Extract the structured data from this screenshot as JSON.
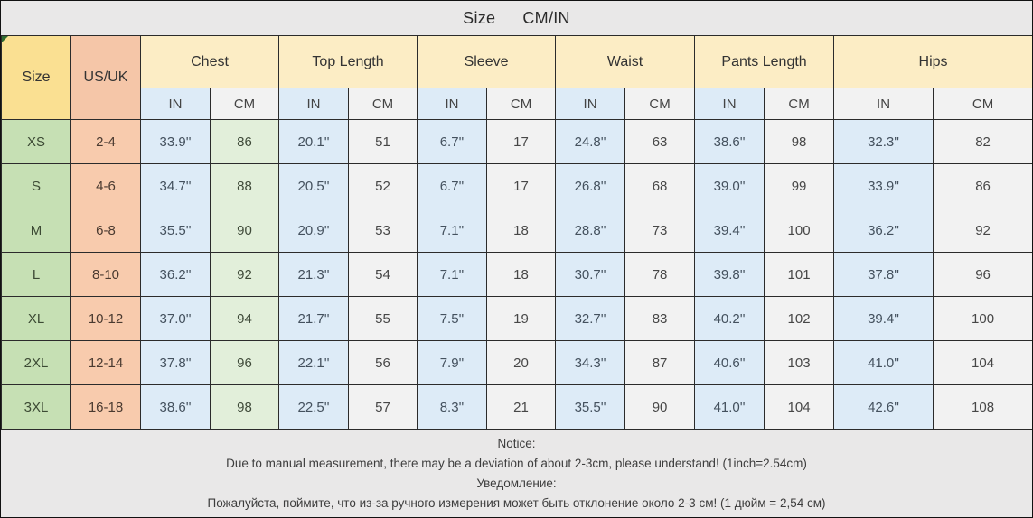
{
  "title": {
    "left": "Size",
    "right": "CM/IN"
  },
  "header": {
    "size": "Size",
    "us_uk": "US/UK",
    "groups": [
      "Chest",
      "Top Length",
      "Sleeve",
      "Waist",
      "Pants Length",
      "Hips"
    ],
    "unit_in": "IN",
    "unit_cm": "CM"
  },
  "chart_data": {
    "type": "table",
    "title": "Size CM/IN",
    "columns": [
      "Size",
      "US/UK",
      "Chest IN",
      "Chest CM",
      "Top Length IN",
      "Top Length CM",
      "Sleeve IN",
      "Sleeve CM",
      "Waist IN",
      "Waist CM",
      "Pants Length IN",
      "Pants Length CM",
      "Hips IN",
      "Hips CM"
    ],
    "rows": [
      [
        "XS",
        "2-4",
        "33.9''",
        "86",
        "20.1''",
        "51",
        "6.7''",
        "17",
        "24.8''",
        "63",
        "38.6''",
        "98",
        "32.3''",
        "82"
      ],
      [
        "S",
        "4-6",
        "34.7''",
        "88",
        "20.5''",
        "52",
        "6.7''",
        "17",
        "26.8''",
        "68",
        "39.0''",
        "99",
        "33.9''",
        "86"
      ],
      [
        "M",
        "6-8",
        "35.5''",
        "90",
        "20.9''",
        "53",
        "7.1''",
        "18",
        "28.8''",
        "73",
        "39.4''",
        "100",
        "36.2''",
        "92"
      ],
      [
        "L",
        "8-10",
        "36.2''",
        "92",
        "21.3''",
        "54",
        "7.1''",
        "18",
        "30.7''",
        "78",
        "39.8''",
        "101",
        "37.8''",
        "96"
      ],
      [
        "XL",
        "10-12",
        "37.0''",
        "94",
        "21.7''",
        "55",
        "7.5''",
        "19",
        "32.7''",
        "83",
        "40.2''",
        "102",
        "39.4''",
        "100"
      ],
      [
        "2XL",
        "12-14",
        "37.8''",
        "96",
        "22.1''",
        "56",
        "7.9''",
        "20",
        "34.3''",
        "87",
        "40.6''",
        "103",
        "41.0''",
        "104"
      ],
      [
        "3XL",
        "16-18",
        "38.6''",
        "98",
        "22.5''",
        "57",
        "8.3''",
        "21",
        "35.5''",
        "90",
        "41.0''",
        "104",
        "42.6''",
        "108"
      ]
    ]
  },
  "notice": {
    "heading_en": "Notice:",
    "body_en": "Due to manual measurement, there may be a deviation of about 2-3cm, please understand! (1inch=2.54cm)",
    "heading_ru": "Уведомление:",
    "body_ru": "Пожалуйста, поймите, что из-за ручного измерения может быть отклонение около 2-3 см! (1 дюйм = 2,54 см)"
  },
  "colors": {
    "panel_bg": "#E9E8E8",
    "size_header": "#FAE092",
    "usuk_header": "#F5C6A8",
    "group_header": "#FCEDC5",
    "in_header": "#DDEBF7",
    "cm_header": "#F2F2F2",
    "size_cell": "#C6E0B4",
    "usuk_cell": "#F8CBAD",
    "in_cell": "#DDEBF7",
    "cm_cell": "#F2F2F2",
    "chest_cm_cell": "#E2EFDA",
    "grid_line": "#2b2b2b"
  }
}
